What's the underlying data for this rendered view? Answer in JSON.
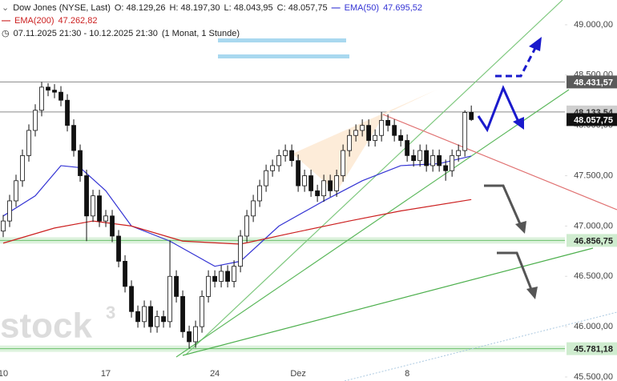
{
  "header": {
    "instrument": "Dow Jones (NYSE, Last)",
    "ohlc": [
      "O: 48.129,26",
      "H: 48.197,30",
      "L: 48.043,95",
      "C: 48.057,75"
    ],
    "ema50_value": "47.695,52",
    "ema200_value": "47.262,82",
    "range": "07.11.2025 21:30 - 10.12.2025 21:30",
    "period": "(1 Monat, 1 Stunde)",
    "watermark": [
      "stock",
      "3"
    ]
  },
  "chart_data": {
    "type": "candlestick",
    "open": [
      46950,
      47050,
      47250,
      47450,
      47700,
      47950,
      48150,
      48380,
      48350,
      48330,
      48250,
      48000,
      47750,
      47500,
      47100,
      47300,
      47050,
      47100,
      46900,
      46650,
      46400,
      46150,
      46050,
      46200,
      46000,
      46100,
      46050,
      46500,
      46300,
      45950,
      45850,
      46000,
      46300,
      46500,
      46450,
      46550,
      46450,
      46600,
      46900,
      47100,
      47250,
      47400,
      47550,
      47600,
      47700,
      47750,
      47650,
      47400,
      47500,
      47350,
      47300,
      47450,
      47350,
      47500,
      47750,
      47900,
      47950,
      48000,
      47850,
      47900,
      48050,
      48000,
      47900,
      47850,
      47700,
      47650,
      47750,
      47600,
      47700,
      47600,
      47550,
      47700,
      47750,
      48129.26
    ],
    "high": [
      47110,
      47310,
      47510,
      47760,
      48010,
      48210,
      48431.57,
      48420,
      48410,
      48390,
      48310,
      48060,
      47810,
      47560,
      47360,
      47360,
      47160,
      47160,
      46960,
      46710,
      46460,
      46210,
      46260,
      46260,
      46160,
      46160,
      46856.75,
      46560,
      46360,
      46010,
      46060,
      46360,
      46560,
      46560,
      46610,
      46610,
      46660,
      46960,
      47160,
      47310,
      47460,
      47610,
      47660,
      47760,
      47810,
      47810,
      47710,
      47560,
      47560,
      47410,
      47510,
      47510,
      47560,
      47810,
      47960,
      48010,
      48060,
      48060,
      47960,
      48133.54,
      48110,
      48060,
      47960,
      47910,
      47760,
      47810,
      47810,
      47760,
      47760,
      47660,
      47760,
      47810,
      48150,
      48197.3
    ],
    "low": [
      46890,
      46990,
      47190,
      47390,
      47640,
      47890,
      48090,
      48290,
      48270,
      48190,
      47940,
      47690,
      47440,
      46850,
      47040,
      46990,
      46990,
      46840,
      46590,
      46340,
      46090,
      45990,
      45990,
      45940,
      45940,
      45990,
      45990,
      46240,
      45890,
      45781.18,
      45790,
      45940,
      46240,
      46390,
      46390,
      46390,
      46390,
      46540,
      46840,
      47040,
      47190,
      47340,
      47490,
      47540,
      47640,
      47590,
      47340,
      47340,
      47290,
      47240,
      47240,
      47290,
      47290,
      47440,
      47690,
      47840,
      47890,
      47790,
      47790,
      47840,
      47940,
      47840,
      47790,
      47640,
      47590,
      47590,
      47540,
      47540,
      47540,
      47450,
      47490,
      47640,
      47690,
      48043.95
    ],
    "close": [
      47050,
      47250,
      47450,
      47700,
      47950,
      48150,
      48380,
      48350,
      48330,
      48250,
      48000,
      47750,
      47500,
      47100,
      47300,
      47050,
      47100,
      46900,
      46650,
      46400,
      46150,
      46050,
      46200,
      46000,
      46100,
      46050,
      46500,
      46300,
      45950,
      45850,
      46000,
      46300,
      46500,
      46450,
      46550,
      46450,
      46600,
      46900,
      47100,
      47250,
      47400,
      47550,
      47600,
      47700,
      47750,
      47650,
      47400,
      47500,
      47350,
      47300,
      47450,
      47350,
      47500,
      47750,
      47900,
      47950,
      48000,
      47850,
      47900,
      48050,
      48000,
      47900,
      47850,
      47700,
      47650,
      47750,
      47600,
      47700,
      47600,
      47550,
      47700,
      47750,
      48129.26,
      48057.75
    ],
    "series": [
      {
        "name": "EMA(50)",
        "color": "#3434d4",
        "x": [
          0,
          5,
          9,
          12,
          16,
          20,
          26,
          33,
          37,
          43,
          50,
          56,
          62,
          68,
          73
        ],
        "values": [
          47100,
          47300,
          47600,
          47580,
          47350,
          47000,
          46850,
          46600,
          46650,
          47000,
          47250,
          47450,
          47600,
          47620,
          47695.52
        ]
      },
      {
        "name": "EMA(200)",
        "color": "#cc2020",
        "x": [
          0,
          8,
          14,
          20,
          28,
          37,
          45,
          54,
          62,
          73
        ],
        "values": [
          46830,
          46980,
          47050,
          47000,
          46850,
          46820,
          46930,
          47050,
          47150,
          47262.82
        ]
      }
    ],
    "levels": [
      {
        "value": 48431.57,
        "label": "48.431,57",
        "line_color": "#8a8a8a",
        "box_color": "#5a5a5a",
        "text_color": "#ffffff",
        "line": true
      },
      {
        "value": 48133.54,
        "label": "48.133,54",
        "line_color": "#8a8a8a",
        "box_color": "#cfcfcf",
        "text_color": "#333333",
        "line": true
      },
      {
        "value": 48057.75,
        "label": "48.057,75",
        "line_color": "#000000",
        "box_color": "#111111",
        "text_color": "#ffffff",
        "line": false
      },
      {
        "value": 46856.75,
        "label": "46.856,75",
        "line_color": "#6cbf6c",
        "box_color": "#cfeccf",
        "text_color": "#222222",
        "line": true
      },
      {
        "value": 45781.18,
        "label": "45.781,18",
        "line_color": "#6cbf6c",
        "box_color": "#cfeccf",
        "text_color": "#222222",
        "line": true
      }
    ],
    "xlim": [
      -0.5,
      87.6
    ],
    "xticks": [
      {
        "value": 0,
        "label": "10"
      },
      {
        "value": 16,
        "label": "17"
      },
      {
        "value": 33,
        "label": "24"
      },
      {
        "value": 46,
        "label": "Dez"
      },
      {
        "value": 63,
        "label": "8"
      }
    ],
    "ylim": [
      45460,
      49246
    ],
    "yticks": [
      {
        "value": 45500,
        "label": "45.500,00"
      },
      {
        "value": 46000,
        "label": "46.000,00"
      },
      {
        "value": 46500,
        "label": "46.500,00"
      },
      {
        "value": 47000,
        "label": "47.000,00"
      },
      {
        "value": 47500,
        "label": "47.500,00"
      },
      {
        "value": 48000,
        "label": "48.000,00"
      },
      {
        "value": 48500,
        "label": "48.500,00"
      },
      {
        "value": 49000,
        "label": "49.000,00"
      }
    ]
  }
}
